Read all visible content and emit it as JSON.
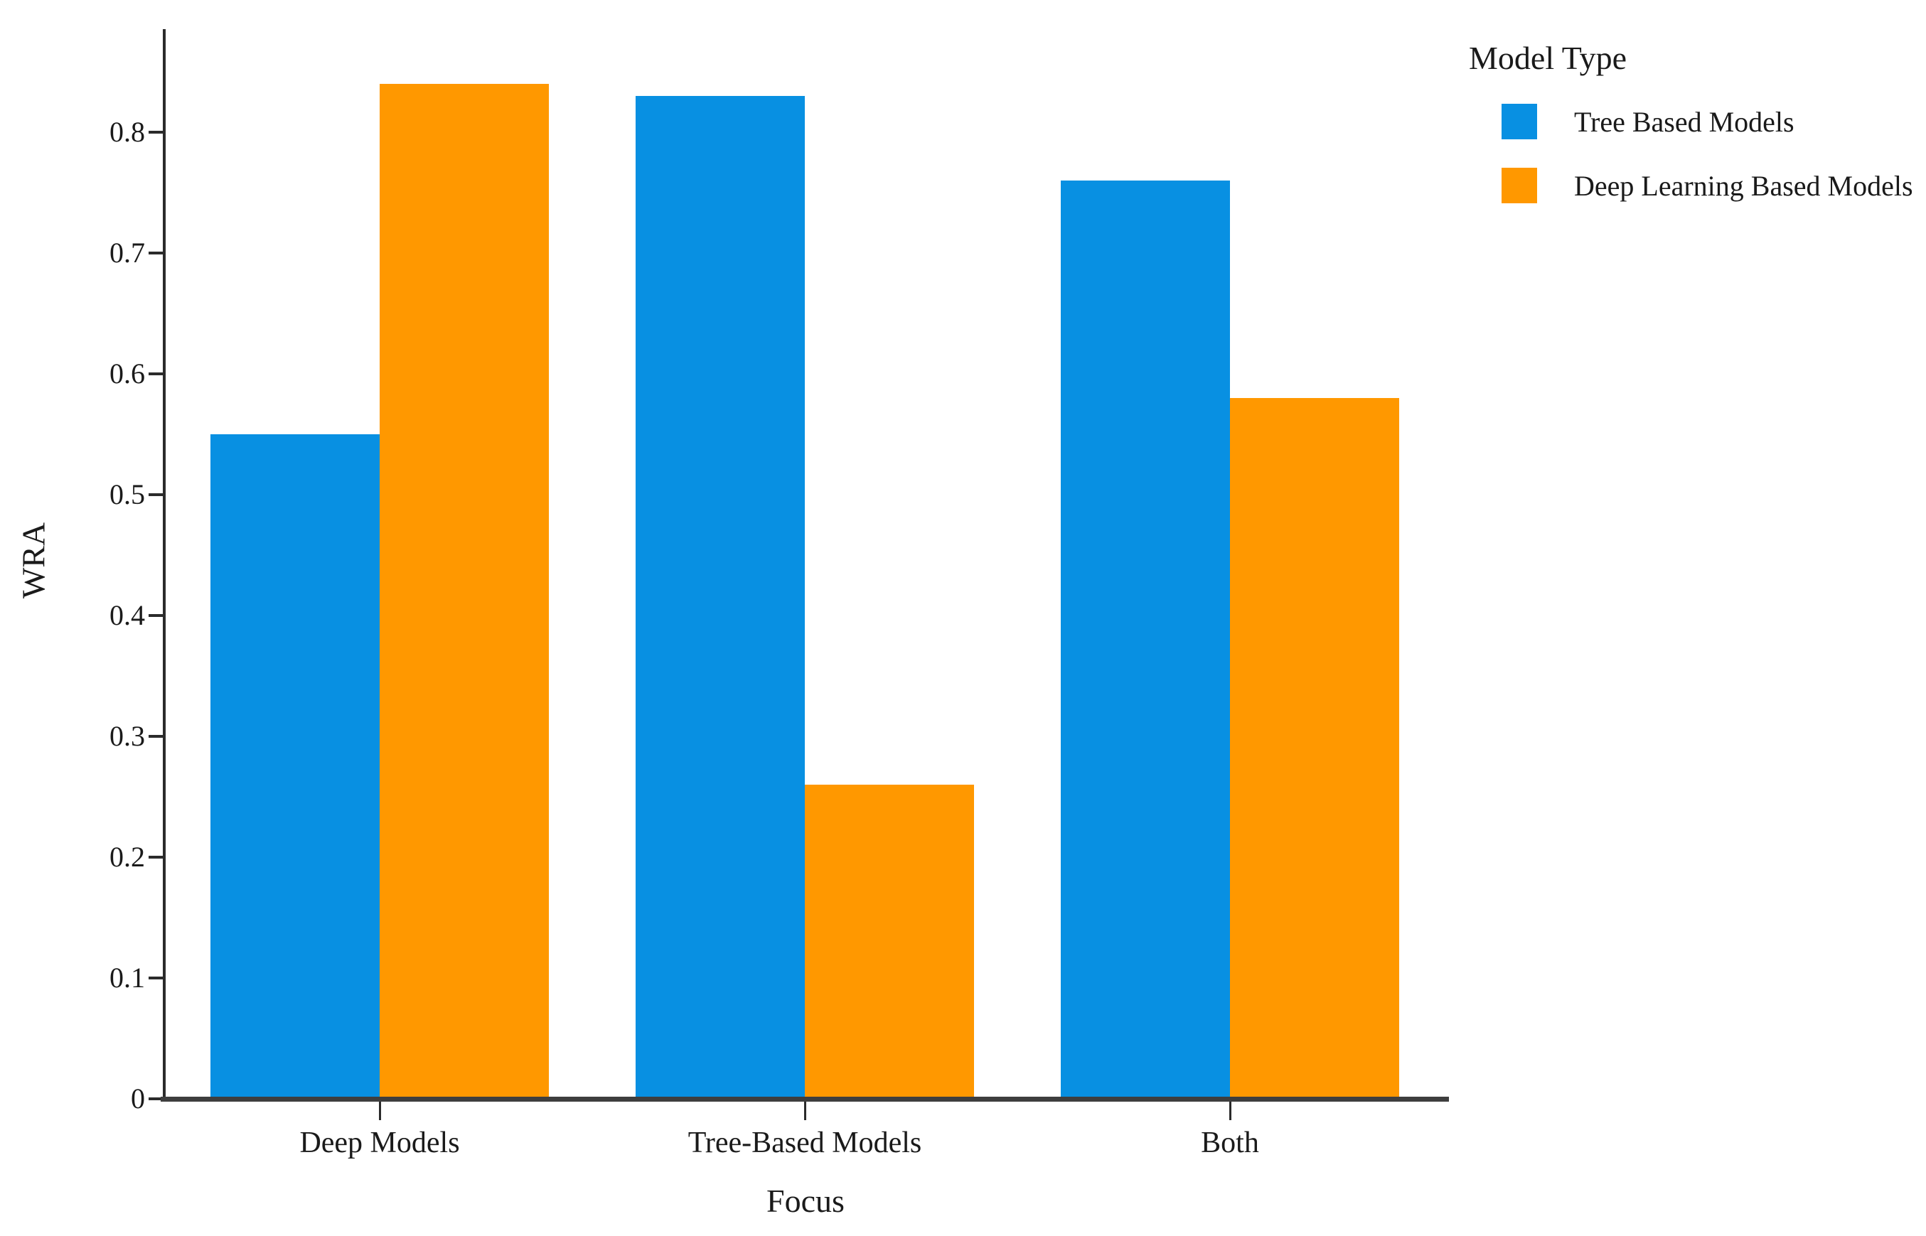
{
  "figure": {
    "background": "#ffffff",
    "text_color": "#1a1a1a",
    "axis_color": "#2b2b2b"
  },
  "chart_data": {
    "type": "bar",
    "title": "",
    "xlabel": "Focus",
    "ylabel": "WRA",
    "categories": [
      "Deep Models",
      "Tree-Based Models",
      "Both"
    ],
    "series": [
      {
        "name": "Tree Based Models",
        "color": "#0890E2",
        "values": [
          0.55,
          0.83,
          0.76
        ]
      },
      {
        "name": "Deep Learning Based Models",
        "color": "#FF9800",
        "values": [
          0.84,
          0.26,
          0.58
        ]
      }
    ],
    "ylim": [
      0,
      0.89
    ],
    "yticks": [
      "0",
      "0.1",
      "0.2",
      "0.3",
      "0.4",
      "0.5",
      "0.6",
      "0.7",
      "0.8"
    ],
    "grid": false,
    "legend": {
      "title": "Model Type",
      "position": "top-right"
    }
  }
}
